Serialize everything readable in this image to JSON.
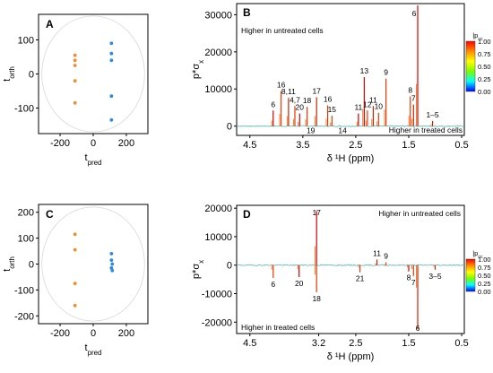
{
  "chart_data": [
    {
      "panel": "A",
      "type": "scatter",
      "xlabel": "t",
      "xlabel_sub": "pred",
      "ylabel": "t",
      "ylabel_sub": "orth",
      "xlim": [
        -330,
        330
      ],
      "ylim": [
        -175,
        175
      ],
      "xticks": [
        -200,
        0,
        200
      ],
      "yticks": [
        -100,
        0,
        100
      ],
      "ellipse": {
        "rx": 310,
        "ry": 170
      },
      "series": [
        {
          "color": "#f28c28",
          "points": [
            [
              -110,
              55
            ],
            [
              -110,
              40
            ],
            [
              -110,
              25
            ],
            [
              -110,
              -20
            ],
            [
              -110,
              -85
            ]
          ]
        },
        {
          "color": "#2a8be6",
          "points": [
            [
              110,
              90
            ],
            [
              110,
              60
            ],
            [
              110,
              40
            ],
            [
              110,
              -65
            ],
            [
              110,
              -135
            ]
          ]
        }
      ]
    },
    {
      "panel": "B",
      "type": "line",
      "xlabel": "δ ¹H (ppm)",
      "ylabel": "p*σ",
      "ylabel_sub": "x",
      "xlim": [
        4.75,
        0.45
      ],
      "ylim": [
        -2500,
        33000
      ],
      "xticks": [
        4.5,
        3.5,
        2.5,
        1.5,
        0.5
      ],
      "yticks": [
        0,
        10000,
        20000,
        30000
      ],
      "annotations_text": [
        "Higher in untreated cells",
        "Higher in treated cells"
      ],
      "peaks": [
        {
          "x": 1.33,
          "y": 32500,
          "label": "6"
        },
        {
          "x": 1.47,
          "y": 8000,
          "label": "8"
        },
        {
          "x": 1.41,
          "y": 5800,
          "label": "7"
        },
        {
          "x": 1.93,
          "y": 12800,
          "label": "9"
        },
        {
          "x": 2.34,
          "y": 13200,
          "label": "13"
        },
        {
          "x": 2.07,
          "y": 3600,
          "label": "10"
        },
        {
          "x": 2.17,
          "y": 5400,
          "label": "11"
        },
        {
          "x": 2.28,
          "y": 4200,
          "label": "12"
        },
        {
          "x": 2.45,
          "y": 3400,
          "label": "11"
        },
        {
          "x": 3.03,
          "y": 5600,
          "label": "16"
        },
        {
          "x": 3.24,
          "y": 7800,
          "label": "17"
        },
        {
          "x": 3.42,
          "y": 5200,
          "label": "18"
        },
        {
          "x": 3.56,
          "y": 3400,
          "label": "20"
        },
        {
          "x": 3.65,
          "y": 5400,
          "label": "4,7"
        },
        {
          "x": 3.77,
          "y": 7600,
          "label": "8,11"
        },
        {
          "x": 3.91,
          "y": 9400,
          "label": "16"
        },
        {
          "x": 4.06,
          "y": 4200,
          "label": "6"
        },
        {
          "x": 2.95,
          "y": 2800,
          "label": "15"
        },
        {
          "x": 1.05,
          "y": 1400,
          "label": "1–5"
        }
      ],
      "underlabels": [
        {
          "x": 3.35,
          "label": "19"
        },
        {
          "x": 2.75,
          "label": "14"
        }
      ]
    },
    {
      "panel": "C",
      "type": "scatter",
      "xlabel": "t",
      "xlabel_sub": "pred",
      "ylabel": "t",
      "ylabel_sub": "orth",
      "xlim": [
        -330,
        330
      ],
      "ylim": [
        -230,
        230
      ],
      "xticks": [
        -200,
        0,
        200
      ],
      "yticks": [
        -200,
        -100,
        0,
        100,
        200
      ],
      "ellipse": {
        "rx": 310,
        "ry": 220
      },
      "series": [
        {
          "color": "#f28c28",
          "points": [
            [
              -110,
              115
            ],
            [
              -110,
              55
            ],
            [
              -110,
              -75
            ],
            [
              -110,
              -160
            ]
          ]
        },
        {
          "color": "#2a8be6",
          "points": [
            [
              110,
              40
            ],
            [
              110,
              15
            ],
            [
              115,
              0
            ],
            [
              110,
              -15
            ],
            [
              115,
              -25
            ]
          ]
        }
      ]
    },
    {
      "panel": "D",
      "type": "line",
      "xlabel": "δ ¹H (ppm)",
      "ylabel": "p*σ",
      "ylabel_sub": "x",
      "xlim": [
        4.75,
        0.45
      ],
      "ylim": [
        -24000,
        21000
      ],
      "xticks": [
        4.5,
        3.2,
        2.5,
        1.5,
        0.5
      ],
      "yticks": [
        -20000,
        -10000,
        0,
        10000,
        20000
      ],
      "annotations_text": [
        "Higher in untreated cells",
        "Higher in treated cells"
      ],
      "peaks": [
        {
          "x": 3.24,
          "y": 19000,
          "label": "17",
          "pos": "above"
        },
        {
          "x": 3.24,
          "y": -9500,
          "label": "18",
          "pos": "below"
        },
        {
          "x": 1.33,
          "y": -22500,
          "label": "6",
          "pos": "below"
        },
        {
          "x": 4.06,
          "y": -4500,
          "label": "6",
          "pos": "below"
        },
        {
          "x": 3.57,
          "y": -4200,
          "label": "20",
          "pos": "below"
        },
        {
          "x": 2.42,
          "y": -2500,
          "label": "21",
          "pos": "below"
        },
        {
          "x": 2.1,
          "y": 2000,
          "label": "11",
          "pos": "above"
        },
        {
          "x": 1.93,
          "y": 1000,
          "label": "9",
          "pos": "above"
        },
        {
          "x": 1.5,
          "y": -2200,
          "label": "8",
          "pos": "below"
        },
        {
          "x": 1.41,
          "y": -3800,
          "label": "7",
          "pos": "below"
        },
        {
          "x": 1.0,
          "y": -1600,
          "label": "3–5",
          "pos": "below"
        }
      ]
    }
  ],
  "colorbar": {
    "label": "|p",
    "label_sub": "cc",
    "ticks": [
      "1.00",
      "0.75",
      "0.50",
      "0.25",
      "0.00"
    ],
    "colors": [
      "#ff0000",
      "#ff8c00",
      "#ffff00",
      "#7cfc00",
      "#00ffff",
      "#0000ff"
    ]
  }
}
